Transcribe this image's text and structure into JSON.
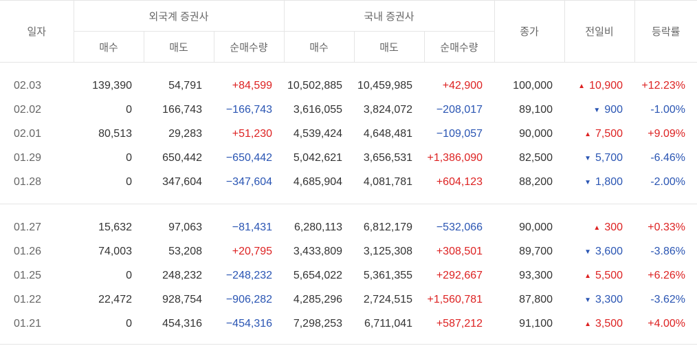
{
  "headers": {
    "date": "일자",
    "foreign_group": "외국계 증권사",
    "domestic_group": "국내 증권사",
    "buy": "매수",
    "sell": "매도",
    "net": "순매수량",
    "close": "종가",
    "change": "전일비",
    "rate": "등락률"
  },
  "colors": {
    "up": "#dd2222",
    "down": "#2a55b3"
  },
  "rows": [
    {
      "date": "02.03",
      "f_buy": "139,390",
      "f_sell": "54,791",
      "f_net": "+84,599",
      "f_dir": "up",
      "d_buy": "10,502,885",
      "d_sell": "10,459,985",
      "d_net": "+42,900",
      "d_dir": "up",
      "close": "100,000",
      "change": "10,900",
      "change_dir": "up",
      "rate": "+12.23%",
      "rate_dir": "up"
    },
    {
      "date": "02.02",
      "f_buy": "0",
      "f_sell": "166,743",
      "f_net": "−166,743",
      "f_dir": "down",
      "d_buy": "3,616,055",
      "d_sell": "3,824,072",
      "d_net": "−208,017",
      "d_dir": "down",
      "close": "89,100",
      "change": "900",
      "change_dir": "down",
      "rate": "-1.00%",
      "rate_dir": "down"
    },
    {
      "date": "02.01",
      "f_buy": "80,513",
      "f_sell": "29,283",
      "f_net": "+51,230",
      "f_dir": "up",
      "d_buy": "4,539,424",
      "d_sell": "4,648,481",
      "d_net": "−109,057",
      "d_dir": "down",
      "close": "90,000",
      "change": "7,500",
      "change_dir": "up",
      "rate": "+9.09%",
      "rate_dir": "up"
    },
    {
      "date": "01.29",
      "f_buy": "0",
      "f_sell": "650,442",
      "f_net": "−650,442",
      "f_dir": "down",
      "d_buy": "5,042,621",
      "d_sell": "3,656,531",
      "d_net": "+1,386,090",
      "d_dir": "up",
      "close": "82,500",
      "change": "5,700",
      "change_dir": "down",
      "rate": "-6.46%",
      "rate_dir": "down"
    },
    {
      "date": "01.28",
      "f_buy": "0",
      "f_sell": "347,604",
      "f_net": "−347,604",
      "f_dir": "down",
      "d_buy": "4,685,904",
      "d_sell": "4,081,781",
      "d_net": "+604,123",
      "d_dir": "up",
      "close": "88,200",
      "change": "1,800",
      "change_dir": "down",
      "rate": "-2.00%",
      "rate_dir": "down"
    },
    {
      "date": "01.27",
      "f_buy": "15,632",
      "f_sell": "97,063",
      "f_net": "−81,431",
      "f_dir": "down",
      "d_buy": "6,280,113",
      "d_sell": "6,812,179",
      "d_net": "−532,066",
      "d_dir": "down",
      "close": "90,000",
      "change": "300",
      "change_dir": "up",
      "rate": "+0.33%",
      "rate_dir": "up"
    },
    {
      "date": "01.26",
      "f_buy": "74,003",
      "f_sell": "53,208",
      "f_net": "+20,795",
      "f_dir": "up",
      "d_buy": "3,433,809",
      "d_sell": "3,125,308",
      "d_net": "+308,501",
      "d_dir": "up",
      "close": "89,700",
      "change": "3,600",
      "change_dir": "down",
      "rate": "-3.86%",
      "rate_dir": "down"
    },
    {
      "date": "01.25",
      "f_buy": "0",
      "f_sell": "248,232",
      "f_net": "−248,232",
      "f_dir": "down",
      "d_buy": "5,654,022",
      "d_sell": "5,361,355",
      "d_net": "+292,667",
      "d_dir": "up",
      "close": "93,300",
      "change": "5,500",
      "change_dir": "up",
      "rate": "+6.26%",
      "rate_dir": "up"
    },
    {
      "date": "01.22",
      "f_buy": "22,472",
      "f_sell": "928,754",
      "f_net": "−906,282",
      "f_dir": "down",
      "d_buy": "4,285,296",
      "d_sell": "2,724,515",
      "d_net": "+1,560,781",
      "d_dir": "up",
      "close": "87,800",
      "change": "3,300",
      "change_dir": "down",
      "rate": "-3.62%",
      "rate_dir": "down"
    },
    {
      "date": "01.21",
      "f_buy": "0",
      "f_sell": "454,316",
      "f_net": "−454,316",
      "f_dir": "down",
      "d_buy": "7,298,253",
      "d_sell": "6,711,041",
      "d_net": "+587,212",
      "d_dir": "up",
      "close": "91,100",
      "change": "3,500",
      "change_dir": "up",
      "rate": "+4.00%",
      "rate_dir": "up"
    }
  ]
}
